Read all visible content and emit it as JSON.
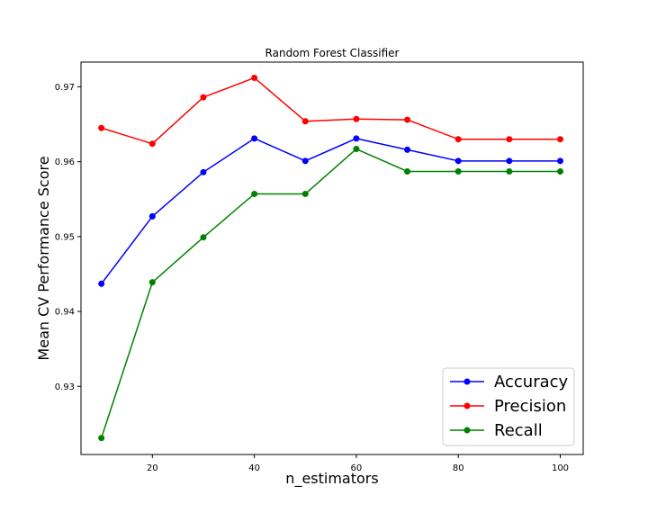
{
  "chart_data": {
    "type": "line",
    "title": "Random Forest Classifier",
    "xlabel": "n_estimators",
    "ylabel": "Mean CV Performance Score",
    "x": [
      10,
      20,
      30,
      40,
      50,
      60,
      70,
      80,
      90,
      100
    ],
    "xlim": [
      6,
      104.5
    ],
    "ylim": [
      0.9209,
      0.9733
    ],
    "xticks": [
      20,
      40,
      60,
      80,
      100
    ],
    "yticks": [
      0.93,
      0.94,
      0.95,
      0.96,
      0.97
    ],
    "ytick_labels": [
      "0.93",
      "0.94",
      "0.95",
      "0.96",
      "0.97"
    ],
    "grid": false,
    "legend_position": "lower-right",
    "series": [
      {
        "name": "Accuracy",
        "color": "#0000ff",
        "values": [
          0.9437,
          0.9527,
          0.9586,
          0.9631,
          0.9601,
          0.9631,
          0.9616,
          0.9601,
          0.9601,
          0.9601
        ]
      },
      {
        "name": "Precision",
        "color": "#ff0000",
        "values": [
          0.9645,
          0.9624,
          0.9686,
          0.9712,
          0.9654,
          0.9657,
          0.9656,
          0.963,
          0.963,
          0.963
        ]
      },
      {
        "name": "Recall",
        "color": "#008000",
        "values": [
          0.9231,
          0.9439,
          0.9499,
          0.9557,
          0.9557,
          0.9617,
          0.9587,
          0.9587,
          0.9587,
          0.9587
        ]
      }
    ]
  }
}
